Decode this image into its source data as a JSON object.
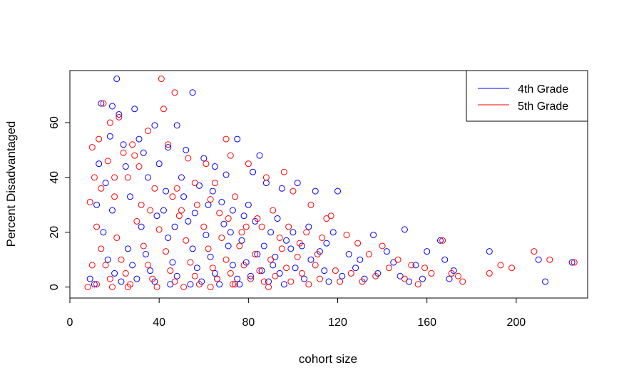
{
  "chart_data": {
    "type": "scatter",
    "title": "",
    "xlabel": "cohort size",
    "ylabel": "Percent Disadvantaged",
    "xlim": [
      0,
      232
    ],
    "ylim": [
      -4,
      79
    ],
    "x_ticks": [
      "0",
      "40",
      "80",
      "120",
      "160",
      "200"
    ],
    "y_ticks": [
      "0",
      "20",
      "40",
      "60"
    ],
    "grid": false,
    "legend_position": "top-right",
    "series": [
      {
        "name": "4th Grade",
        "color": "#0000ff",
        "points": [
          [
            21,
            76
          ],
          [
            55,
            71
          ],
          [
            14,
            67
          ],
          [
            19,
            66
          ],
          [
            22,
            63
          ],
          [
            38,
            59
          ],
          [
            29,
            65
          ],
          [
            48,
            59
          ],
          [
            31,
            54
          ],
          [
            75,
            54
          ],
          [
            44,
            51
          ],
          [
            52,
            50
          ],
          [
            60,
            47
          ],
          [
            85,
            48
          ],
          [
            18,
            55
          ],
          [
            25,
            44
          ],
          [
            33,
            49
          ],
          [
            65,
            44
          ],
          [
            70,
            41
          ],
          [
            82,
            42
          ],
          [
            88,
            38
          ],
          [
            95,
            36
          ],
          [
            102,
            38
          ],
          [
            110,
            35
          ],
          [
            120,
            35
          ],
          [
            40,
            45
          ],
          [
            50,
            40
          ],
          [
            58,
            37
          ],
          [
            62,
            30
          ],
          [
            68,
            31
          ],
          [
            73,
            28
          ],
          [
            78,
            26
          ],
          [
            83,
            24
          ],
          [
            90,
            20
          ],
          [
            97,
            17
          ],
          [
            104,
            15
          ],
          [
            112,
            13
          ],
          [
            118,
            20
          ],
          [
            125,
            12
          ],
          [
            130,
            10
          ],
          [
            136,
            19
          ],
          [
            142,
            13
          ],
          [
            150,
            21
          ],
          [
            155,
            8
          ],
          [
            160,
            13
          ],
          [
            166,
            17
          ],
          [
            172,
            6
          ],
          [
            188,
            13
          ],
          [
            210,
            10
          ],
          [
            213,
            2
          ],
          [
            225,
            9
          ],
          [
            12,
            30
          ],
          [
            15,
            20
          ],
          [
            17,
            10
          ],
          [
            20,
            5
          ],
          [
            23,
            2
          ],
          [
            26,
            14
          ],
          [
            28,
            8
          ],
          [
            30,
            3
          ],
          [
            32,
            22
          ],
          [
            34,
            12
          ],
          [
            36,
            6
          ],
          [
            38,
            2
          ],
          [
            42,
            28
          ],
          [
            44,
            18
          ],
          [
            46,
            9
          ],
          [
            48,
            4
          ],
          [
            51,
            33
          ],
          [
            53,
            24
          ],
          [
            55,
            14
          ],
          [
            57,
            7
          ],
          [
            59,
            2
          ],
          [
            61,
            19
          ],
          [
            63,
            11
          ],
          [
            65,
            5
          ],
          [
            67,
            1
          ],
          [
            69,
            23
          ],
          [
            71,
            15
          ],
          [
            73,
            8
          ],
          [
            75,
            3
          ],
          [
            77,
            17
          ],
          [
            79,
            9
          ],
          [
            81,
            4
          ],
          [
            84,
            12
          ],
          [
            86,
            6
          ],
          [
            89,
            2
          ],
          [
            92,
            11
          ],
          [
            94,
            5
          ],
          [
            96,
            1
          ],
          [
            99,
            14
          ],
          [
            101,
            7
          ],
          [
            105,
            3
          ],
          [
            108,
            10
          ],
          [
            114,
            6
          ],
          [
            116,
            2
          ],
          [
            122,
            4
          ],
          [
            128,
            7
          ],
          [
            132,
            3
          ],
          [
            138,
            5
          ],
          [
            145,
            9
          ],
          [
            148,
            4
          ],
          [
            152,
            2
          ],
          [
            158,
            3
          ],
          [
            168,
            10
          ],
          [
            170,
            3
          ],
          [
            13,
            45
          ],
          [
            16,
            38
          ],
          [
            19,
            28
          ],
          [
            24,
            52
          ],
          [
            27,
            33
          ],
          [
            35,
            40
          ],
          [
            39,
            26
          ],
          [
            43,
            35
          ],
          [
            47,
            22
          ],
          [
            56,
            27
          ],
          [
            64,
            35
          ],
          [
            72,
            20
          ],
          [
            80,
            30
          ],
          [
            87,
            15
          ],
          [
            93,
            25
          ],
          [
            100,
            20
          ],
          [
            107,
            22
          ],
          [
            115,
            16
          ],
          [
            9,
            3
          ],
          [
            11,
            1
          ],
          [
            45,
            1
          ],
          [
            54,
            1
          ],
          [
            66,
            3
          ],
          [
            76,
            1
          ],
          [
            91,
            8
          ]
        ]
      },
      {
        "name": "5th Grade",
        "color": "#ff0000",
        "points": [
          [
            41,
            76
          ],
          [
            47,
            71
          ],
          [
            15,
            67
          ],
          [
            22,
            62
          ],
          [
            42,
            65
          ],
          [
            18,
            60
          ],
          [
            10,
            51
          ],
          [
            13,
            54
          ],
          [
            35,
            57
          ],
          [
            70,
            54
          ],
          [
            24,
            49
          ],
          [
            29,
            48
          ],
          [
            44,
            52
          ],
          [
            53,
            47
          ],
          [
            61,
            45
          ],
          [
            72,
            48
          ],
          [
            80,
            45
          ],
          [
            88,
            40
          ],
          [
            96,
            42
          ],
          [
            100,
            35
          ],
          [
            108,
            30
          ],
          [
            115,
            25
          ],
          [
            11,
            40
          ],
          [
            14,
            36
          ],
          [
            20,
            33
          ],
          [
            26,
            40
          ],
          [
            32,
            30
          ],
          [
            38,
            36
          ],
          [
            46,
            33
          ],
          [
            50,
            28
          ],
          [
            56,
            38
          ],
          [
            63,
            32
          ],
          [
            67,
            27
          ],
          [
            74,
            33
          ],
          [
            79,
            22
          ],
          [
            84,
            25
          ],
          [
            91,
            28
          ],
          [
            98,
            22
          ],
          [
            106,
            20
          ],
          [
            113,
            18
          ],
          [
            117,
            26
          ],
          [
            124,
            19
          ],
          [
            129,
            16
          ],
          [
            134,
            12
          ],
          [
            140,
            15
          ],
          [
            147,
            10
          ],
          [
            153,
            8
          ],
          [
            159,
            7
          ],
          [
            167,
            17
          ],
          [
            171,
            5
          ],
          [
            176,
            2
          ],
          [
            188,
            5
          ],
          [
            193,
            8
          ],
          [
            198,
            7
          ],
          [
            208,
            13
          ],
          [
            215,
            10
          ],
          [
            226,
            9
          ],
          [
            9,
            31
          ],
          [
            12,
            22
          ],
          [
            14,
            14
          ],
          [
            16,
            8
          ],
          [
            18,
            3
          ],
          [
            21,
            18
          ],
          [
            23,
            10
          ],
          [
            25,
            5
          ],
          [
            27,
            1
          ],
          [
            30,
            24
          ],
          [
            33,
            15
          ],
          [
            35,
            8
          ],
          [
            37,
            3
          ],
          [
            40,
            21
          ],
          [
            43,
            13
          ],
          [
            45,
            6
          ],
          [
            47,
            2
          ],
          [
            49,
            26
          ],
          [
            52,
            17
          ],
          [
            54,
            9
          ],
          [
            56,
            4
          ],
          [
            58,
            1
          ],
          [
            60,
            22
          ],
          [
            62,
            14
          ],
          [
            64,
            7
          ],
          [
            66,
            3
          ],
          [
            68,
            18
          ],
          [
            70,
            10
          ],
          [
            72,
            5
          ],
          [
            74,
            1
          ],
          [
            76,
            15
          ],
          [
            78,
            8
          ],
          [
            81,
            3
          ],
          [
            83,
            12
          ],
          [
            85,
            6
          ],
          [
            87,
            2
          ],
          [
            90,
            10
          ],
          [
            92,
            4
          ],
          [
            95,
            14
          ],
          [
            97,
            7
          ],
          [
            99,
            2
          ],
          [
            102,
            11
          ],
          [
            104,
            5
          ],
          [
            107,
            1
          ],
          [
            110,
            8
          ],
          [
            112,
            3
          ],
          [
            119,
            6
          ],
          [
            121,
            2
          ],
          [
            126,
            5
          ],
          [
            131,
            2
          ],
          [
            137,
            4
          ],
          [
            143,
            7
          ],
          [
            150,
            3
          ],
          [
            156,
            1
          ],
          [
            162,
            5
          ],
          [
            174,
            4
          ],
          [
            10,
            8
          ],
          [
            12,
            1
          ],
          [
            17,
            46
          ],
          [
            20,
            40
          ],
          [
            28,
            52
          ],
          [
            31,
            44
          ],
          [
            36,
            28
          ],
          [
            48,
            36
          ],
          [
            57,
            30
          ],
          [
            65,
            38
          ],
          [
            71,
            25
          ],
          [
            77,
            20
          ],
          [
            86,
            22
          ],
          [
            94,
            18
          ],
          [
            103,
            16
          ],
          [
            111,
            12
          ],
          [
            8,
            0
          ],
          [
            19,
            0
          ],
          [
            26,
            0
          ],
          [
            39,
            0
          ],
          [
            51,
            0
          ],
          [
            63,
            0
          ],
          [
            73,
            1
          ],
          [
            89,
            0
          ]
        ]
      }
    ]
  }
}
